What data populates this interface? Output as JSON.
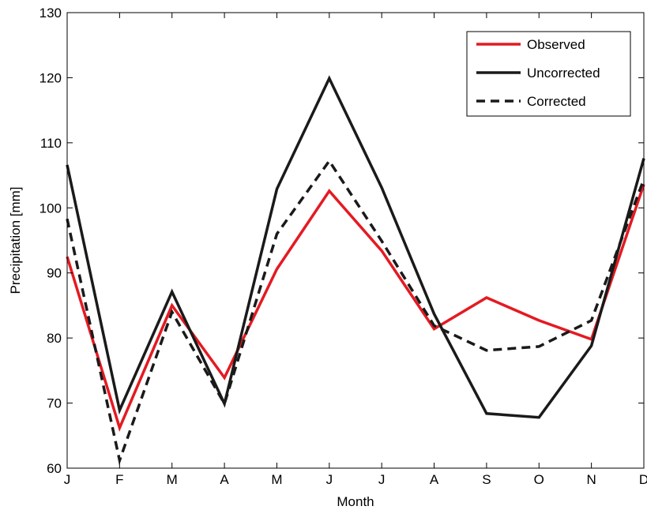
{
  "chart_data": {
    "type": "line",
    "xlabel": "Month",
    "ylabel": "Precipitation [mm]",
    "categories": [
      "J",
      "F",
      "M",
      "A",
      "M",
      "J",
      "J",
      "A",
      "S",
      "O",
      "N",
      "D"
    ],
    "ylim": [
      60,
      130
    ],
    "yticks": [
      60,
      70,
      80,
      90,
      100,
      110,
      120,
      130
    ],
    "grid": false,
    "legend_position": "top-right",
    "series": [
      {
        "name": "Observed",
        "color": "#e41a22",
        "style": "solid",
        "values": [
          92.5,
          66.2,
          85.0,
          73.9,
          90.6,
          102.6,
          93.4,
          81.4,
          86.2,
          82.7,
          79.8,
          103.6
        ]
      },
      {
        "name": "Uncorrected",
        "color": "#1a1a1a",
        "style": "solid",
        "values": [
          106.6,
          68.9,
          87.1,
          69.9,
          102.9,
          119.9,
          103.1,
          83.7,
          68.4,
          67.8,
          78.8,
          107.6
        ]
      },
      {
        "name": "Corrected",
        "color": "#1a1a1a",
        "style": "dashed",
        "values": [
          98.3,
          61.2,
          84.0,
          69.9,
          96.0,
          107.2,
          94.9,
          81.9,
          78.1,
          78.7,
          82.7,
          104.4
        ]
      }
    ]
  }
}
